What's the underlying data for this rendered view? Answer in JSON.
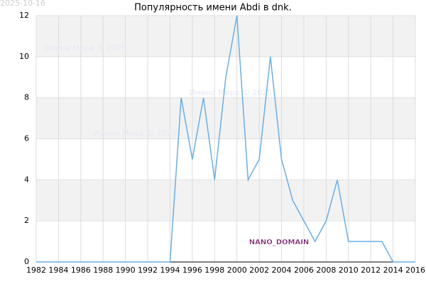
{
  "chart_data": {
    "type": "line",
    "title": "Популярность имени Abdi в dnk.",
    "date": "2025-10-16",
    "watermarks": [
      "Имена Мира © 2025",
      "Имена Мира © 2025",
      "Имена Мира © 2025"
    ],
    "annotation": "NANO_DOMAIN",
    "x": [
      1982,
      1983,
      1984,
      1985,
      1986,
      1987,
      1988,
      1989,
      1990,
      1991,
      1992,
      1993,
      1994,
      1995,
      1996,
      1997,
      1998,
      1999,
      2000,
      2001,
      2002,
      2003,
      2004,
      2005,
      2006,
      2007,
      2008,
      2009,
      2010,
      2011,
      2012,
      2013,
      2014,
      2015,
      2016
    ],
    "series": [
      {
        "name": "Abdi",
        "color": "#6aaee8",
        "values": [
          0,
          0,
          0,
          0,
          0,
          0,
          0,
          0,
          0,
          0,
          0,
          0,
          0,
          8,
          5,
          8,
          4,
          9,
          12,
          4,
          5,
          10,
          5,
          3,
          2,
          1,
          2,
          4,
          1,
          1,
          1,
          1,
          0,
          0,
          0
        ]
      }
    ],
    "xlim": [
      1982,
      2016
    ],
    "xticks": [
      1982,
      1984,
      1986,
      1988,
      1990,
      1992,
      1994,
      1996,
      1998,
      2000,
      2002,
      2004,
      2006,
      2008,
      2010,
      2012,
      2014,
      2016
    ],
    "ylim": [
      0,
      12
    ],
    "yticks": [
      0,
      2,
      4,
      6,
      8,
      10,
      12
    ],
    "grid": true
  }
}
